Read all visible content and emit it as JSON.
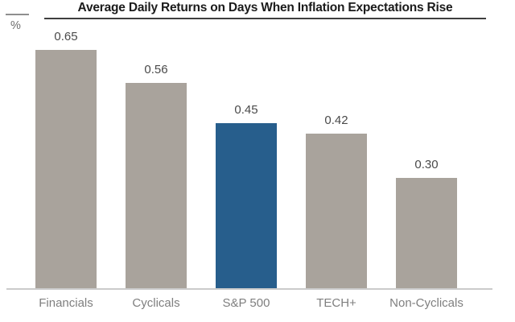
{
  "header": {
    "title": "Average Daily Returns on Days When Inflation Expectations Rise",
    "y_axis_unit": "%"
  },
  "colors": {
    "bar_default": "#a9a39c",
    "bar_highlight": "#275e8c",
    "title_text": "#1b1b1b",
    "value_label_text": "#4a4a4a",
    "category_label_text": "#7f7f7f",
    "baseline": "#cbcbcb"
  },
  "chart_data": {
    "type": "bar",
    "title": "Average Daily Returns on Days When Inflation Expectations Rise",
    "categories": [
      "Financials",
      "Cyclicals",
      "S&P 500",
      "TECH+",
      "Non-Cyclicals"
    ],
    "values": [
      0.65,
      0.56,
      0.45,
      0.42,
      0.3
    ],
    "value_labels": [
      "0.65",
      "0.56",
      "0.45",
      "0.42",
      "0.30"
    ],
    "highlight_index": 2,
    "highlight_category": "S&P 500",
    "xlabel": "",
    "ylabel": "%",
    "ylim": [
      0,
      0.75
    ],
    "grid": false,
    "legend": false,
    "value_labels_position": "above-bars"
  }
}
